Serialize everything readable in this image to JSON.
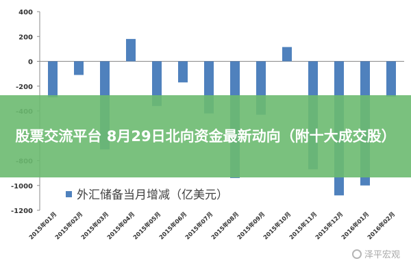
{
  "page": {
    "banner_title": "股票交流平台 8月29日北向资金最新动向（附十大成交股）",
    "watermark_text": "泽平宏观",
    "watermark_icon": "wechat-icon"
  },
  "chart_data": {
    "type": "bar",
    "categories": [
      "2015年01月",
      "2015年02月",
      "2015年03月",
      "2015年04月",
      "2015年05月",
      "2015年06月",
      "2015年07月",
      "2015年08月",
      "2015年09月",
      "2015年10月",
      "2015年11月",
      "2015年12月",
      "2016年01月",
      "2016年02月"
    ],
    "series": [
      {
        "name": "外汇储备当月增减（亿美元）",
        "values": [
          -290,
          -110,
          -710,
          180,
          -360,
          -170,
          -420,
          -940,
          -430,
          115,
          -870,
          -1080,
          -1000,
          -285
        ],
        "color": "#4f81bd"
      }
    ],
    "yticks": [
      400,
      200,
      0,
      -200,
      -400,
      -600,
      -800,
      -1000,
      -1200
    ],
    "ylim": [
      -1200,
      400
    ],
    "grid": false,
    "legend_position": "bottom-center",
    "title": "",
    "xlabel": "",
    "ylabel": ""
  }
}
